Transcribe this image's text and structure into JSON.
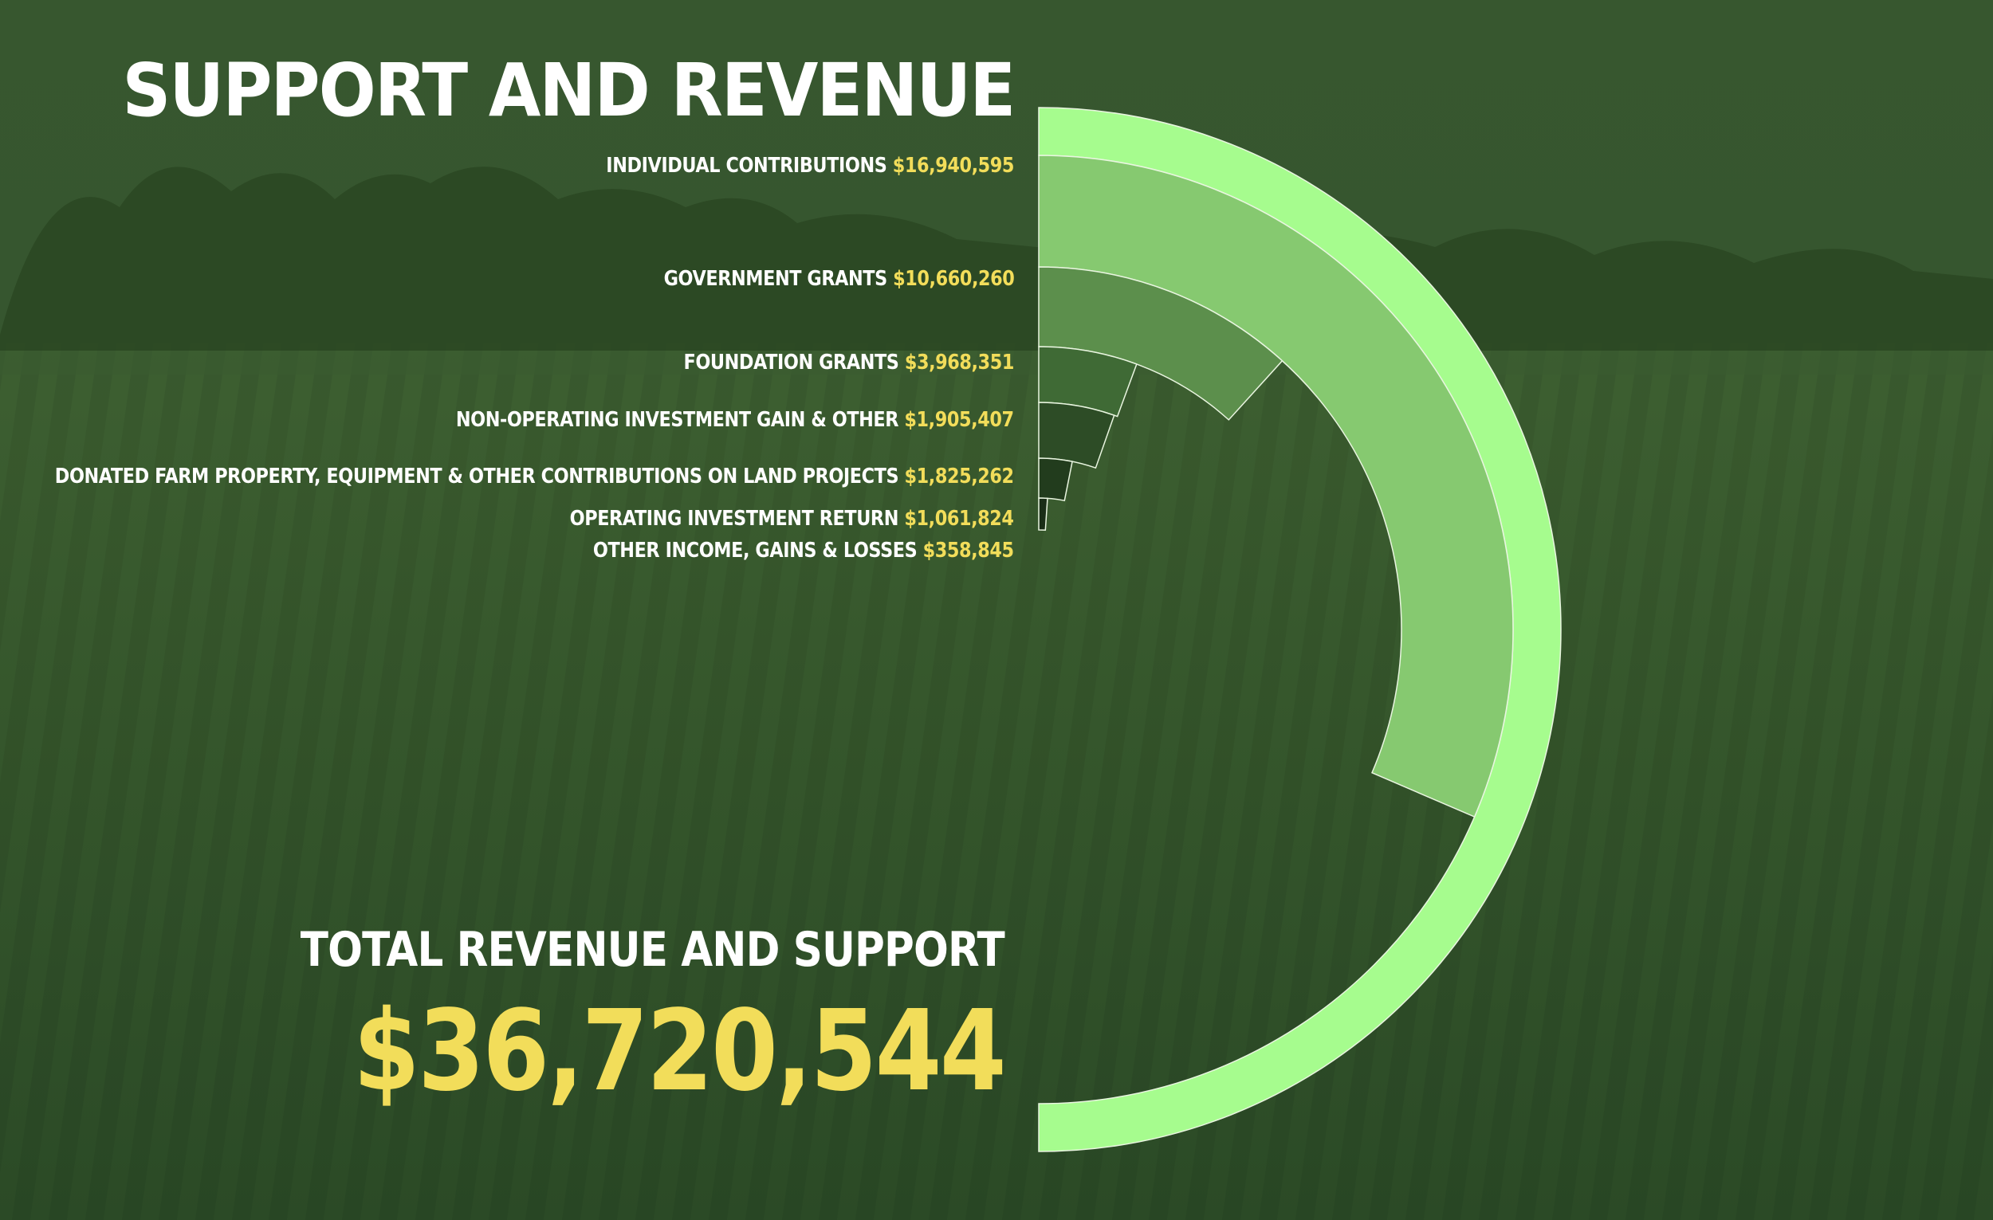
{
  "title": "SUPPORT AND REVENUE",
  "total": {
    "label": "TOTAL REVENUE AND SUPPORT",
    "value": "$36,720,544"
  },
  "chart_data": {
    "type": "radial-bar",
    "total_value": 36720544,
    "categories": [
      "INDIVIDUAL CONTRIBUTIONS",
      "GOVERNMENT GRANTS",
      "FOUNDATION GRANTS",
      "NON-OPERATING INVESTMENT GAIN & OTHER",
      "DONATED FARM PROPERTY, EQUIPMENT & OTHER CONTRIBUTIONS ON LAND PROJECTS",
      "OPERATING INVESTMENT RETURN",
      "OTHER INCOME, GAINS & LOSSES"
    ],
    "values": [
      16940595,
      10660260,
      3968351,
      1905407,
      1825262,
      1061824,
      358845
    ],
    "value_labels": [
      "$16,940,595",
      "$10,660,260",
      "$3,968,351",
      "$1,905,407",
      "$1,825,262",
      "$1,061,824",
      "$358,845"
    ],
    "colors": [
      "#a6fc8e",
      "#86c970",
      "#5c8f4c",
      "#3f6a35",
      "#2d4c26",
      "#223c1d",
      "#1a2e17"
    ]
  },
  "colors": {
    "title": "#ffffff",
    "value_highlight": "#f2dd5a",
    "background": "#2f4f2a"
  }
}
